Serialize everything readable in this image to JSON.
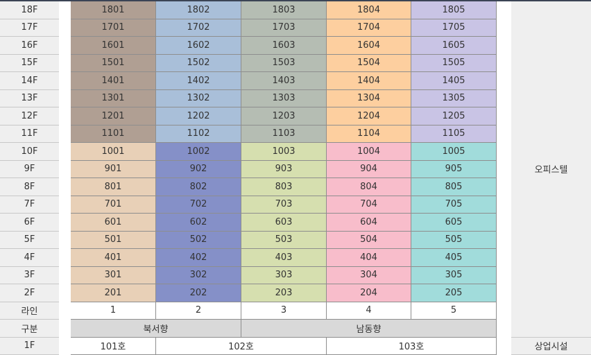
{
  "floors": [
    {
      "label": "18F",
      "units": [
        1801,
        1802,
        1803,
        1804,
        1805
      ]
    },
    {
      "label": "17F",
      "units": [
        1701,
        1702,
        1703,
        1704,
        1705
      ]
    },
    {
      "label": "16F",
      "units": [
        1601,
        1602,
        1603,
        1604,
        1605
      ]
    },
    {
      "label": "15F",
      "units": [
        1501,
        1502,
        1503,
        1504,
        1505
      ]
    },
    {
      "label": "14F",
      "units": [
        1401,
        1402,
        1403,
        1404,
        1405
      ]
    },
    {
      "label": "13F",
      "units": [
        1301,
        1302,
        1303,
        1304,
        1305
      ]
    },
    {
      "label": "12F",
      "units": [
        1201,
        1202,
        1203,
        1204,
        1205
      ]
    },
    {
      "label": "11F",
      "units": [
        1101,
        1102,
        1103,
        1104,
        1105
      ]
    },
    {
      "label": "10F",
      "units": [
        1001,
        1002,
        1003,
        1004,
        1005
      ]
    },
    {
      "label": "9F",
      "units": [
        901,
        902,
        903,
        904,
        905
      ]
    },
    {
      "label": "8F",
      "units": [
        801,
        802,
        803,
        804,
        805
      ]
    },
    {
      "label": "7F",
      "units": [
        701,
        702,
        703,
        704,
        705
      ]
    },
    {
      "label": "6F",
      "units": [
        601,
        602,
        603,
        604,
        605
      ]
    },
    {
      "label": "5F",
      "units": [
        501,
        502,
        503,
        504,
        505
      ]
    },
    {
      "label": "4F",
      "units": [
        401,
        402,
        403,
        404,
        405
      ]
    },
    {
      "label": "3F",
      "units": [
        301,
        302,
        303,
        304,
        305
      ]
    },
    {
      "label": "2F",
      "units": [
        201,
        202,
        203,
        204,
        205
      ]
    }
  ],
  "line_row": {
    "label": "라인",
    "lines": [
      1,
      2,
      3,
      4,
      5
    ]
  },
  "orientation_row": {
    "label": "구분",
    "groups": [
      "북서향",
      "남동향"
    ]
  },
  "ground_row": {
    "label": "1F",
    "units": [
      "101호",
      "102호",
      "103호"
    ],
    "use": "상업시설"
  },
  "upper_use": "오피스텔"
}
